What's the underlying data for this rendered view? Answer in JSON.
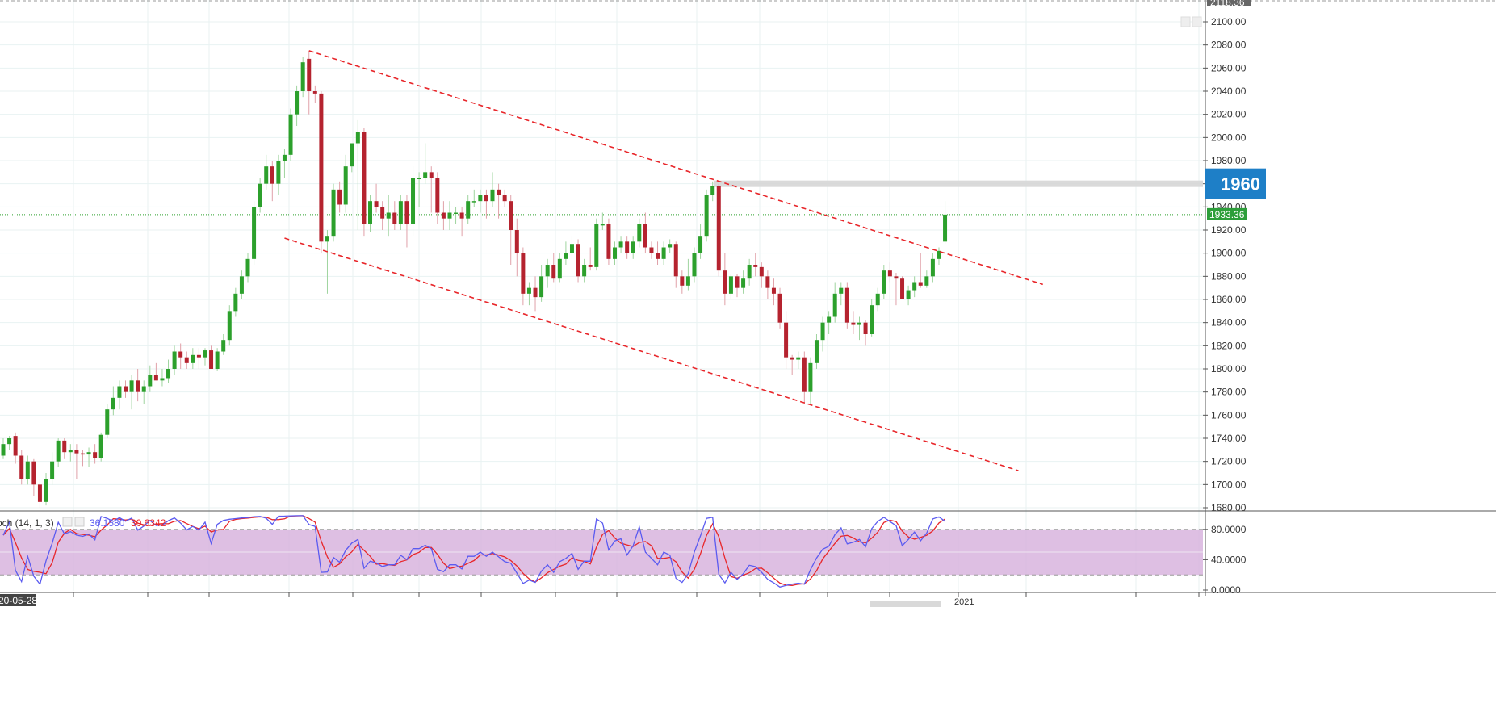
{
  "chart_data": {
    "type": "candlestick",
    "price_axis": {
      "range": [
        1672,
        2118.36
      ],
      "ticks": [
        "1680.00",
        "1700.00",
        "1720.00",
        "1740.00",
        "1760.00",
        "1780.00",
        "1800.00",
        "1820.00",
        "1840.00",
        "1860.00",
        "1880.00",
        "1900.00",
        "1920.00",
        "1940.00",
        "1960.00",
        "1980.00",
        "2000.00",
        "2020.00",
        "2040.00",
        "2060.00",
        "2080.00",
        "2100.00"
      ],
      "top_label": "2118.36",
      "current_price": 1933.36,
      "current_price_label": "1933.36",
      "level": 1960,
      "level_label": "1960"
    },
    "time_axis": {
      "start_label": "20-05-28",
      "year_label": "2021"
    },
    "candles": [
      [
        1725,
        1740,
        1722,
        1735
      ],
      [
        1735,
        1742,
        1730,
        1740
      ],
      [
        1742,
        1745,
        1718,
        1725
      ],
      [
        1725,
        1730,
        1700,
        1705
      ],
      [
        1705,
        1725,
        1700,
        1720
      ],
      [
        1720,
        1722,
        1690,
        1700
      ],
      [
        1700,
        1705,
        1680,
        1685
      ],
      [
        1685,
        1710,
        1682,
        1705
      ],
      [
        1705,
        1728,
        1700,
        1720
      ],
      [
        1720,
        1740,
        1715,
        1738
      ],
      [
        1738,
        1740,
        1722,
        1728
      ],
      [
        1728,
        1735,
        1720,
        1730
      ],
      [
        1730,
        1735,
        1705,
        1727
      ],
      [
        1727,
        1730,
        1716,
        1726
      ],
      [
        1726,
        1732,
        1715,
        1728
      ],
      [
        1728,
        1735,
        1718,
        1723
      ],
      [
        1723,
        1745,
        1720,
        1743
      ],
      [
        1743,
        1770,
        1740,
        1765
      ],
      [
        1765,
        1785,
        1760,
        1775
      ],
      [
        1775,
        1790,
        1765,
        1785
      ],
      [
        1785,
        1790,
        1775,
        1780
      ],
      [
        1780,
        1795,
        1765,
        1790
      ],
      [
        1790,
        1800,
        1772,
        1780
      ],
      [
        1780,
        1790,
        1770,
        1785
      ],
      [
        1785,
        1803,
        1780,
        1795
      ],
      [
        1795,
        1805,
        1790,
        1790
      ],
      [
        1790,
        1800,
        1785,
        1792
      ],
      [
        1792,
        1808,
        1788,
        1800
      ],
      [
        1800,
        1820,
        1795,
        1815
      ],
      [
        1815,
        1822,
        1800,
        1810
      ],
      [
        1810,
        1815,
        1800,
        1805
      ],
      [
        1805,
        1818,
        1800,
        1812
      ],
      [
        1812,
        1818,
        1800,
        1810
      ],
      [
        1810,
        1818,
        1803,
        1816
      ],
      [
        1816,
        1820,
        1800,
        1800
      ],
      [
        1800,
        1818,
        1798,
        1815
      ],
      [
        1815,
        1830,
        1812,
        1825
      ],
      [
        1825,
        1855,
        1820,
        1850
      ],
      [
        1850,
        1870,
        1845,
        1865
      ],
      [
        1865,
        1885,
        1860,
        1880
      ],
      [
        1880,
        1900,
        1875,
        1895
      ],
      [
        1895,
        1945,
        1890,
        1940
      ],
      [
        1940,
        1965,
        1935,
        1960
      ],
      [
        1960,
        1985,
        1955,
        1975
      ],
      [
        1975,
        1980,
        1945,
        1960
      ],
      [
        1960,
        1985,
        1950,
        1980
      ],
      [
        1980,
        1990,
        1965,
        1985
      ],
      [
        1985,
        2025,
        1980,
        2020
      ],
      [
        2020,
        2045,
        2010,
        2040
      ],
      [
        2040,
        2070,
        2035,
        2065
      ],
      [
        2068,
        2075,
        2020,
        2040
      ],
      [
        2040,
        2045,
        2030,
        2038
      ],
      [
        2038,
        2040,
        1900,
        1910
      ],
      [
        1910,
        1920,
        1865,
        1915
      ],
      [
        1915,
        1960,
        1910,
        1955
      ],
      [
        1955,
        1962,
        1935,
        1942
      ],
      [
        1942,
        1985,
        1935,
        1975
      ],
      [
        1975,
        1995,
        1970,
        1995
      ],
      [
        1995,
        2015,
        1920,
        2005
      ],
      [
        2005,
        2008,
        1915,
        1925
      ],
      [
        1925,
        1950,
        1918,
        1945
      ],
      [
        1945,
        1960,
        1935,
        1940
      ],
      [
        1940,
        1945,
        1920,
        1930
      ],
      [
        1930,
        1950,
        1915,
        1935
      ],
      [
        1935,
        1945,
        1920,
        1925
      ],
      [
        1925,
        1950,
        1920,
        1945
      ],
      [
        1945,
        1950,
        1905,
        1925
      ],
      [
        1925,
        1975,
        1915,
        1965
      ],
      [
        1965,
        1970,
        1940,
        1965
      ],
      [
        1965,
        1995,
        1960,
        1970
      ],
      [
        1970,
        1975,
        1935,
        1965
      ],
      [
        1965,
        1970,
        1925,
        1935
      ],
      [
        1935,
        1945,
        1920,
        1930
      ],
      [
        1930,
        1945,
        1920,
        1935
      ],
      [
        1935,
        1940,
        1925,
        1935
      ],
      [
        1935,
        1940,
        1915,
        1930
      ],
      [
        1930,
        1950,
        1925,
        1945
      ],
      [
        1945,
        1955,
        1940,
        1945
      ],
      [
        1945,
        1955,
        1935,
        1950
      ],
      [
        1950,
        1955,
        1930,
        1945
      ],
      [
        1945,
        1970,
        1940,
        1955
      ],
      [
        1955,
        1960,
        1930,
        1950
      ],
      [
        1950,
        1955,
        1940,
        1945
      ],
      [
        1945,
        1950,
        1890,
        1920
      ],
      [
        1920,
        1930,
        1880,
        1900
      ],
      [
        1900,
        1905,
        1855,
        1865
      ],
      [
        1865,
        1875,
        1855,
        1870
      ],
      [
        1870,
        1880,
        1850,
        1862
      ],
      [
        1862,
        1890,
        1858,
        1880
      ],
      [
        1880,
        1895,
        1870,
        1890
      ],
      [
        1890,
        1900,
        1875,
        1878
      ],
      [
        1878,
        1900,
        1875,
        1895
      ],
      [
        1895,
        1910,
        1890,
        1900
      ],
      [
        1900,
        1915,
        1895,
        1908
      ],
      [
        1908,
        1912,
        1875,
        1880
      ],
      [
        1880,
        1895,
        1875,
        1890
      ],
      [
        1890,
        1905,
        1885,
        1888
      ],
      [
        1888,
        1930,
        1885,
        1925
      ],
      [
        1925,
        1935,
        1920,
        1925
      ],
      [
        1925,
        1930,
        1890,
        1895
      ],
      [
        1895,
        1910,
        1890,
        1905
      ],
      [
        1905,
        1915,
        1900,
        1910
      ],
      [
        1910,
        1915,
        1895,
        1900
      ],
      [
        1900,
        1915,
        1895,
        1910
      ],
      [
        1910,
        1930,
        1905,
        1925
      ],
      [
        1925,
        1935,
        1900,
        1905
      ],
      [
        1905,
        1910,
        1895,
        1900
      ],
      [
        1900,
        1910,
        1890,
        1895
      ],
      [
        1895,
        1910,
        1890,
        1905
      ],
      [
        1905,
        1912,
        1900,
        1908
      ],
      [
        1908,
        1910,
        1870,
        1880
      ],
      [
        1880,
        1885,
        1865,
        1872
      ],
      [
        1872,
        1895,
        1868,
        1880
      ],
      [
        1880,
        1905,
        1875,
        1900
      ],
      [
        1900,
        1925,
        1895,
        1915
      ],
      [
        1915,
        1955,
        1910,
        1950
      ],
      [
        1950,
        1962,
        1945,
        1958
      ],
      [
        1958,
        1960,
        1880,
        1885
      ],
      [
        1885,
        1900,
        1855,
        1865
      ],
      [
        1865,
        1882,
        1860,
        1880
      ],
      [
        1880,
        1882,
        1862,
        1870
      ],
      [
        1870,
        1885,
        1865,
        1878
      ],
      [
        1878,
        1895,
        1872,
        1890
      ],
      [
        1890,
        1900,
        1880,
        1888
      ],
      [
        1888,
        1892,
        1870,
        1880
      ],
      [
        1880,
        1885,
        1860,
        1870
      ],
      [
        1870,
        1878,
        1855,
        1865
      ],
      [
        1865,
        1870,
        1835,
        1840
      ],
      [
        1840,
        1850,
        1800,
        1810
      ],
      [
        1810,
        1812,
        1795,
        1808
      ],
      [
        1808,
        1815,
        1800,
        1810
      ],
      [
        1810,
        1815,
        1770,
        1780
      ],
      [
        1780,
        1810,
        1770,
        1805
      ],
      [
        1805,
        1830,
        1800,
        1825
      ],
      [
        1825,
        1845,
        1815,
        1840
      ],
      [
        1840,
        1850,
        1830,
        1845
      ],
      [
        1845,
        1875,
        1840,
        1865
      ],
      [
        1865,
        1875,
        1855,
        1870
      ],
      [
        1870,
        1875,
        1835,
        1840
      ],
      [
        1840,
        1850,
        1830,
        1838
      ],
      [
        1838,
        1845,
        1825,
        1840
      ],
      [
        1840,
        1842,
        1820,
        1830
      ],
      [
        1830,
        1860,
        1828,
        1855
      ],
      [
        1855,
        1870,
        1850,
        1865
      ],
      [
        1865,
        1890,
        1860,
        1885
      ],
      [
        1885,
        1892,
        1875,
        1880
      ],
      [
        1880,
        1883,
        1855,
        1878
      ],
      [
        1878,
        1880,
        1860,
        1860
      ],
      [
        1860,
        1872,
        1855,
        1868
      ],
      [
        1868,
        1880,
        1862,
        1875
      ],
      [
        1875,
        1900,
        1870,
        1872
      ],
      [
        1872,
        1885,
        1870,
        1880
      ],
      [
        1880,
        1900,
        1875,
        1895
      ],
      [
        1895,
        1905,
        1890,
        1902
      ],
      [
        1910,
        1945,
        1908,
        1933.36
      ]
    ],
    "annotations": [
      {
        "type": "trendline",
        "style": "dashed",
        "color": "#e8262a",
        "from": {
          "i": 50,
          "price": 2075
        },
        "to": {
          "i": 170,
          "price": 1873
        }
      },
      {
        "type": "trendline",
        "style": "dashed",
        "color": "#e8262a",
        "from": {
          "i": 46,
          "price": 1913
        },
        "to": {
          "i": 166,
          "price": 1712
        }
      }
    ],
    "oscillator": {
      "label": "och (14, 1, 3)",
      "k_label": "36.1580",
      "d_label": "30.6342",
      "range": [
        0,
        100
      ],
      "ticks": [
        "0.0000",
        "40.0000",
        "80.0000"
      ],
      "band": [
        20,
        80
      ],
      "k_color": "#5b5bf0",
      "d_color": "#e8262a",
      "band_color": "#d8b4de"
    },
    "colors": {
      "up": "#2ca02c",
      "down": "#b5232f",
      "level_bg": "#1e7fc7",
      "current_bg": "#2d9e3a"
    }
  }
}
